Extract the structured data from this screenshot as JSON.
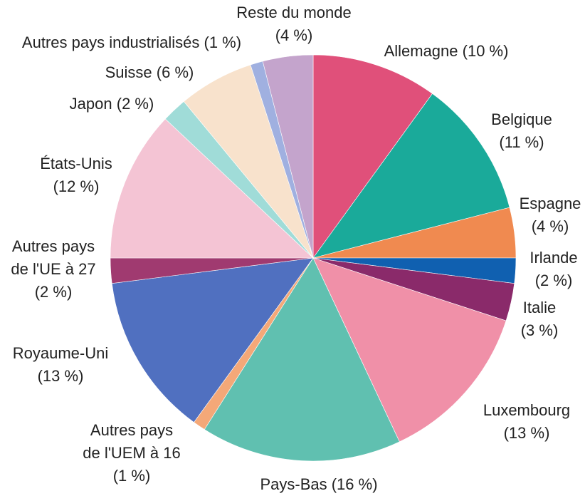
{
  "chart_data": {
    "type": "pie",
    "categories": [
      "Allemagne",
      "Belgique",
      "Espagne",
      "Irlande",
      "Italie",
      "Luxembourg",
      "Pays-Bas",
      "Autres pays de l'UEM à 16",
      "Royaume-Uni",
      "Autres pays de l'UE à 27",
      "États-Unis",
      "Japon",
      "Suisse",
      "Autres pays industrialisés",
      "Reste du monde"
    ],
    "values": [
      10,
      11,
      4,
      2,
      3,
      13,
      16,
      1,
      13,
      2,
      12,
      2,
      6,
      1,
      4
    ],
    "value_labels": [
      "(10 %)",
      "(11 %)",
      "(4 %)",
      "(2 %)",
      "(3 %)",
      "(13 %)",
      "(16 %)",
      "(1 %)",
      "(13 %)",
      "(2 %)",
      "(12 %)",
      "(2 %)",
      "(6 %)",
      "(1 %)",
      "(4 %)"
    ],
    "colors": [
      "#e0507a",
      "#1aaa9a",
      "#f08a50",
      "#1060b0",
      "#8a2a6a",
      "#f090a8",
      "#60c0b0",
      "#f4a878",
      "#5070c0",
      "#a03a70",
      "#f4c4d4",
      "#a0dcd8",
      "#f8e2cc",
      "#a0b0e0",
      "#c4a4cc"
    ]
  }
}
